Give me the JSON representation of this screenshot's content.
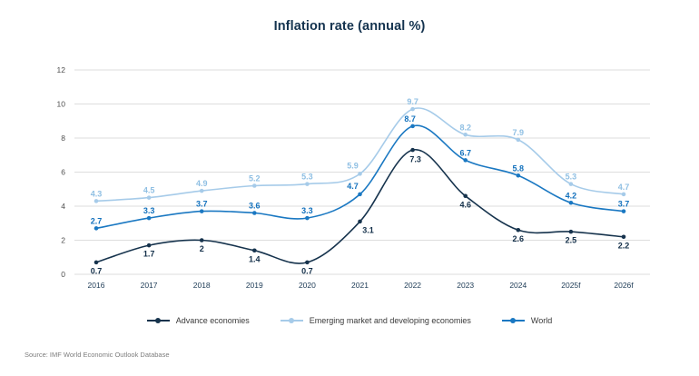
{
  "title": "Inflation rate (annual %)",
  "source_note": "Source: IMF World Economic Outlook Database",
  "colors": {
    "advance": "#16334d",
    "emerging": "#a6cbe9",
    "world": "#1a78c2",
    "advance_label": "#14304a",
    "emerging_label": "#8fbfe3",
    "world_label": "#1371bd",
    "grid": "#dedede",
    "title_text": "#14334f",
    "ytick_text": "#4f4f4f",
    "xtick_text": "#1c3a55",
    "legend_text": "#3a3a3a",
    "source_text": "#7d7d7d"
  },
  "chart_data": {
    "type": "line",
    "title": "Inflation rate (annual %)",
    "xlabel": "",
    "ylabel": "",
    "categories": [
      "2016",
      "2017",
      "2018",
      "2019",
      "2020",
      "2021",
      "2022",
      "2023",
      "2024",
      "2025f",
      "2026f"
    ],
    "series": [
      {
        "name": "Advance economies",
        "key": "advance",
        "values": [
          0.7,
          1.7,
          2,
          1.4,
          0.7,
          3.1,
          7.3,
          4.6,
          2.6,
          2.5,
          2.2
        ],
        "label_position": "below"
      },
      {
        "name": "Emerging market and developing economies",
        "key": "emerging",
        "values": [
          4.3,
          4.5,
          4.9,
          5.2,
          5.3,
          5.9,
          9.7,
          8.2,
          7.9,
          5.3,
          4.7
        ],
        "label_position": "above"
      },
      {
        "name": "World",
        "key": "world",
        "values": [
          2.7,
          3.3,
          3.7,
          3.6,
          3.3,
          4.7,
          8.7,
          6.7,
          5.8,
          4.2,
          3.7
        ],
        "label_position": "above"
      }
    ],
    "ylim": [
      0,
      12
    ],
    "yticks": [
      0,
      2,
      4,
      6,
      8,
      10,
      12
    ],
    "grid": true,
    "smooth_lines": true,
    "point_markers": true,
    "legend_position": "bottom"
  },
  "legend": {
    "items": [
      {
        "label": "Advance economies",
        "key": "advance"
      },
      {
        "label": "Emerging market and developing economies",
        "key": "emerging"
      },
      {
        "label": "World",
        "key": "world"
      }
    ]
  }
}
